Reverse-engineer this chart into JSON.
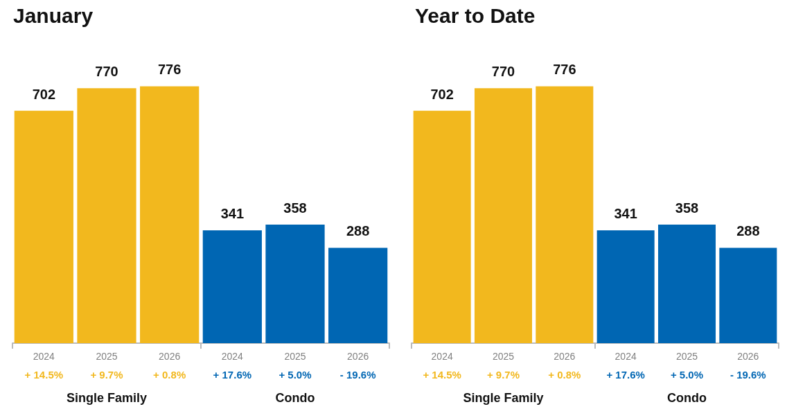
{
  "chart_data": [
    {
      "type": "bar",
      "title": "January",
      "categories": [
        "2024",
        "2025",
        "2026",
        "2024",
        "2025",
        "2026"
      ],
      "series": [
        {
          "color": "#f2b81e",
          "values": [
            702,
            770,
            776,
            null,
            null,
            null
          ]
        },
        {
          "color": "#0066b3",
          "values": [
            null,
            null,
            null,
            341,
            358,
            288
          ]
        }
      ],
      "data_labels": true,
      "annotations": [
        "+ 14.5%",
        "+ 9.7%",
        "+ 0.8%",
        "+ 17.6%",
        "+ 5.0%",
        "- 19.6%",
        "Single Family",
        "Condo"
      ]
    },
    {
      "type": "bar",
      "title": "Year to Date",
      "categories": [
        "2024",
        "2025",
        "2026",
        "2024",
        "2025",
        "2026"
      ],
      "series": [
        {
          "color": "#f2b81e",
          "values": [
            702,
            770,
            776,
            null,
            null,
            null
          ]
        },
        {
          "color": "#0066b3",
          "values": [
            null,
            null,
            null,
            341,
            358,
            288
          ]
        }
      ],
      "data_labels": true,
      "annotations": [
        "+ 14.5%",
        "+ 9.7%",
        "+ 0.8%",
        "+ 17.6%",
        "+ 5.0%",
        "- 19.6%",
        "Single Family",
        "Condo"
      ]
    }
  ]
}
